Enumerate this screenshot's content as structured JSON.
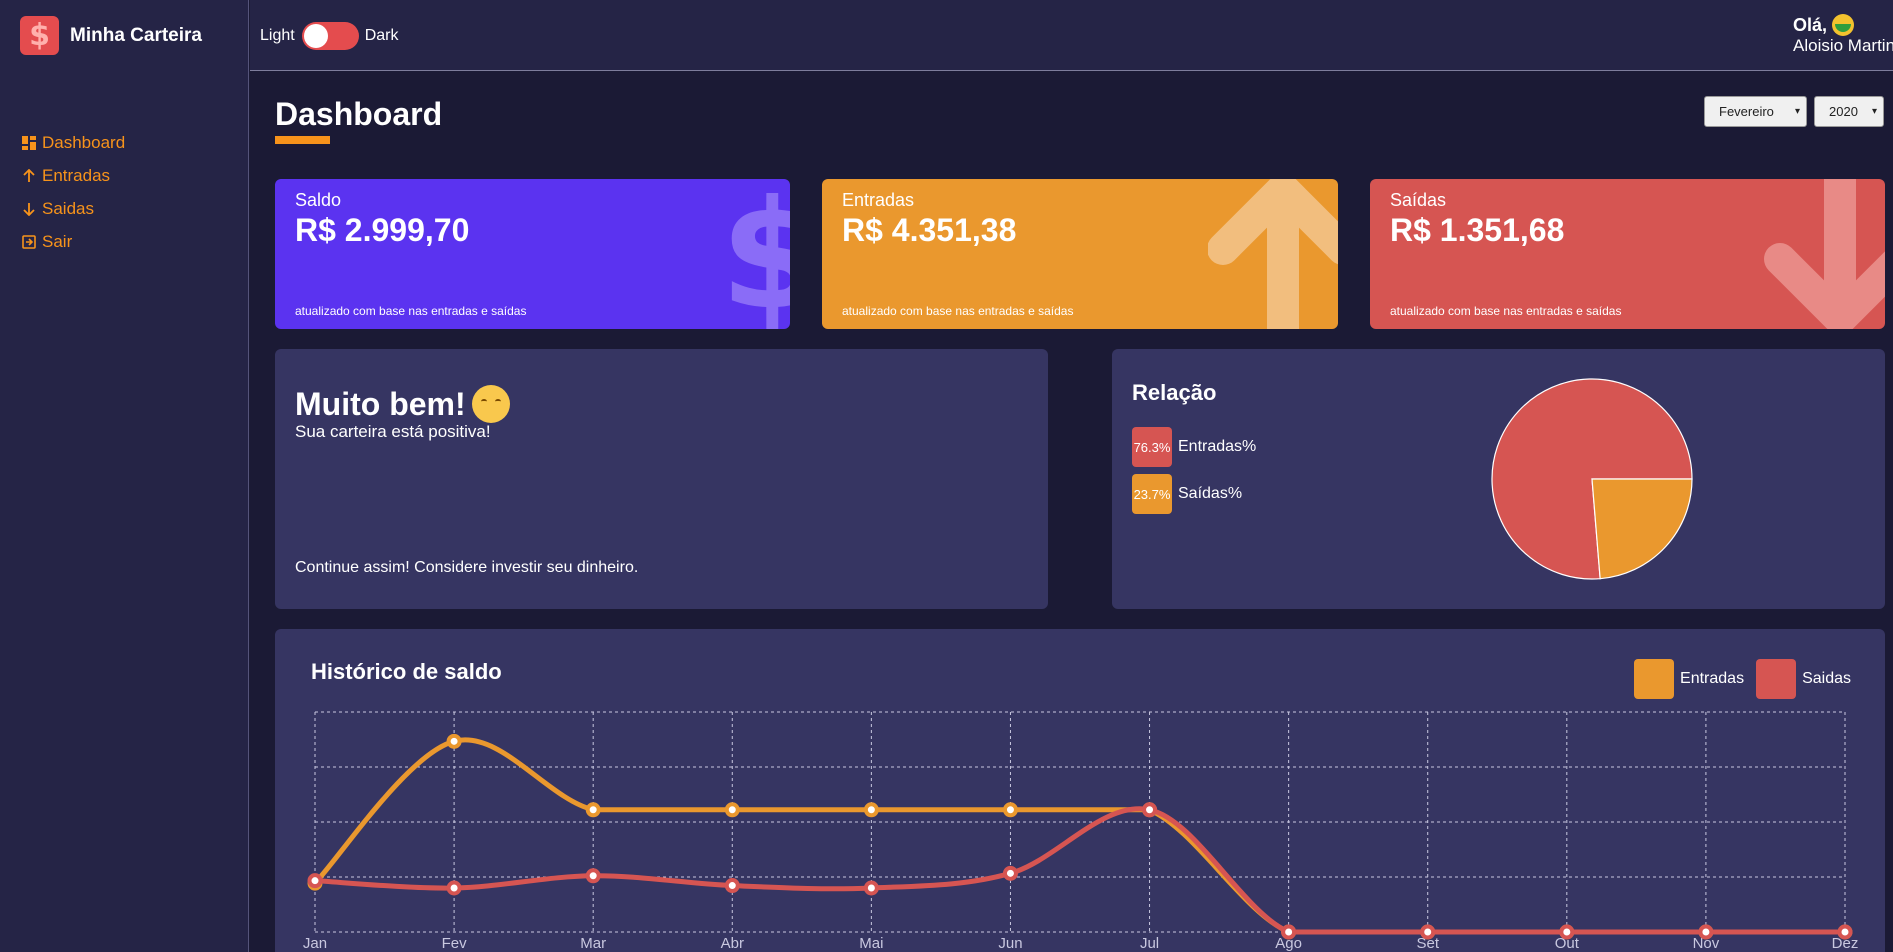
{
  "app": {
    "title": "Minha Carteira",
    "logo_glyph": "$"
  },
  "sidebar": {
    "items": [
      {
        "label": "Dashboard",
        "icon": "dashboard-icon"
      },
      {
        "label": "Entradas",
        "icon": "arrow-up-icon"
      },
      {
        "label": "Saidas",
        "icon": "arrow-down-icon"
      },
      {
        "label": "Sair",
        "icon": "logout-icon"
      }
    ]
  },
  "header": {
    "theme_light": "Light",
    "theme_dark": "Dark",
    "greeting": "Olá,",
    "username": "Aloisio Martin"
  },
  "main": {
    "title": "Dashboard",
    "month_select": "Fevereiro",
    "year_select": "2020"
  },
  "cards": {
    "saldo": {
      "title": "Saldo",
      "value": "R$ 2.999,70",
      "footer": "atualizado com base nas entradas e saídas",
      "color": "#5b33f0"
    },
    "entradas": {
      "title": "Entradas",
      "value": "R$ 4.351,38",
      "footer": "atualizado com base nas entradas e saídas",
      "color": "#ea982e"
    },
    "saidas": {
      "title": "Saídas",
      "value": "R$ 1.351,68",
      "footer": "atualizado com base nas entradas e saídas",
      "color": "#d65552"
    }
  },
  "message": {
    "title": "Muito bem!",
    "subtitle": "Sua carteira está positiva!",
    "footer": "Continue assim! Considere investir seu dinheiro."
  },
  "relation": {
    "title": "Relação",
    "items": [
      {
        "percent": "76.3%",
        "label": "Entradas%",
        "color": "#d65552"
      },
      {
        "percent": "23.7%",
        "label": "Saídas%",
        "color": "#ea982e"
      }
    ]
  },
  "history": {
    "title": "Histórico de saldo",
    "legend": [
      {
        "label": "Entradas",
        "color": "#ea982e"
      },
      {
        "label": "Saidas",
        "color": "#d65552"
      }
    ]
  },
  "chart_data": [
    {
      "type": "pie",
      "series": [
        {
          "name": "Entradas%",
          "value": 76.3,
          "color": "#d65552"
        },
        {
          "name": "Saídas%",
          "value": 23.7,
          "color": "#ea982e"
        }
      ]
    },
    {
      "type": "line",
      "categories": [
        "Jan",
        "Fev",
        "Mar",
        "Abr",
        "Mai",
        "Jun",
        "Jul",
        "Ago",
        "Set",
        "Out",
        "Nov",
        "Dez"
      ],
      "series": [
        {
          "name": "Entradas",
          "color": "#ea982e",
          "values": [
            1000,
            3900,
            2500,
            2500,
            2500,
            2500,
            2500,
            0,
            0,
            0,
            0,
            0
          ]
        },
        {
          "name": "Saidas",
          "color": "#d65552",
          "values": [
            1050,
            900,
            1150,
            950,
            900,
            1200,
            2500,
            0,
            0,
            0,
            0,
            0
          ]
        }
      ],
      "ylim": [
        0,
        4500
      ],
      "grid": true
    }
  ]
}
